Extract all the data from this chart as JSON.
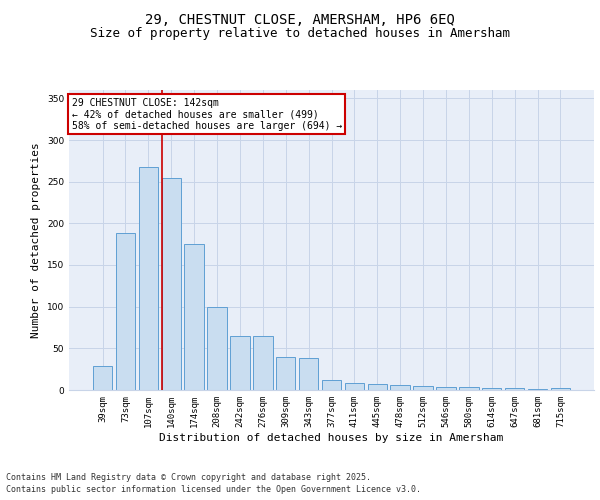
{
  "title1": "29, CHESTNUT CLOSE, AMERSHAM, HP6 6EQ",
  "title2": "Size of property relative to detached houses in Amersham",
  "xlabel": "Distribution of detached houses by size in Amersham",
  "ylabel": "Number of detached properties",
  "categories": [
    "39sqm",
    "73sqm",
    "107sqm",
    "140sqm",
    "174sqm",
    "208sqm",
    "242sqm",
    "276sqm",
    "309sqm",
    "343sqm",
    "377sqm",
    "411sqm",
    "445sqm",
    "478sqm",
    "512sqm",
    "546sqm",
    "580sqm",
    "614sqm",
    "647sqm",
    "681sqm",
    "715sqm"
  ],
  "values": [
    29,
    188,
    268,
    255,
    175,
    100,
    65,
    65,
    40,
    38,
    12,
    9,
    7,
    6,
    5,
    4,
    4,
    2,
    2,
    1,
    2
  ],
  "bar_color": "#c9ddf0",
  "bar_edge_color": "#5f9fd4",
  "grid_color": "#c8d4e8",
  "background_color": "#e8eef8",
  "annotation_line1": "29 CHESTNUT CLOSE: 142sqm",
  "annotation_line2": "← 42% of detached houses are smaller (499)",
  "annotation_line3": "58% of semi-detached houses are larger (694) →",
  "annotation_box_color": "#ffffff",
  "annotation_box_edge_color": "#cc0000",
  "vline_color": "#cc0000",
  "vline_x_index": 3,
  "ylim": [
    0,
    360
  ],
  "yticks": [
    0,
    50,
    100,
    150,
    200,
    250,
    300,
    350
  ],
  "footer1": "Contains HM Land Registry data © Crown copyright and database right 2025.",
  "footer2": "Contains public sector information licensed under the Open Government Licence v3.0.",
  "title_fontsize": 10,
  "subtitle_fontsize": 9,
  "label_fontsize": 8,
  "tick_fontsize": 6.5,
  "annotation_fontsize": 7,
  "footer_fontsize": 6
}
